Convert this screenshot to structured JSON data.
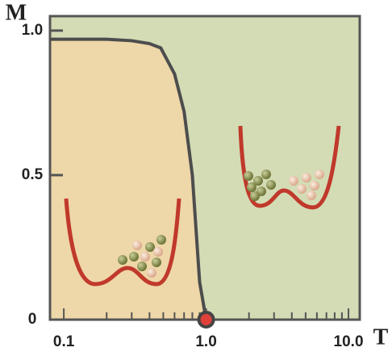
{
  "chart_data": {
    "type": "line",
    "y_label": "M",
    "x_label": "T",
    "x_scale": "log",
    "background_color": "#d3dcb5",
    "fill_color": "#eed7a8",
    "x": [
      0.08,
      0.2,
      0.3,
      0.4,
      0.48,
      0.6,
      0.7,
      0.8,
      0.9,
      1.0
    ],
    "series": [
      {
        "color": "#4d4d4d",
        "values": [
          0.97,
          0.97,
          0.965,
          0.955,
          0.94,
          0.85,
          0.72,
          0.5,
          0.13,
          0
        ]
      }
    ],
    "marker": {
      "x": 1.0,
      "y": 0,
      "color": "#e0403a"
    },
    "xlim": [
      0.08,
      12
    ],
    "ylim": [
      0,
      1.05
    ],
    "xticks": [
      0.1,
      {
        "value": 1,
        "label": "1.0"
      },
      {
        "value": 10,
        "label": "10.0"
      }
    ],
    "xminor": [
      0.2,
      0.3,
      0.4,
      0.5,
      0.6,
      0.7,
      0.8,
      0.9,
      2,
      3,
      4,
      5,
      6,
      7,
      8,
      9
    ],
    "yticks": [
      0,
      0.5,
      {
        "value": 1,
        "label": "1.0"
      }
    ]
  }
}
